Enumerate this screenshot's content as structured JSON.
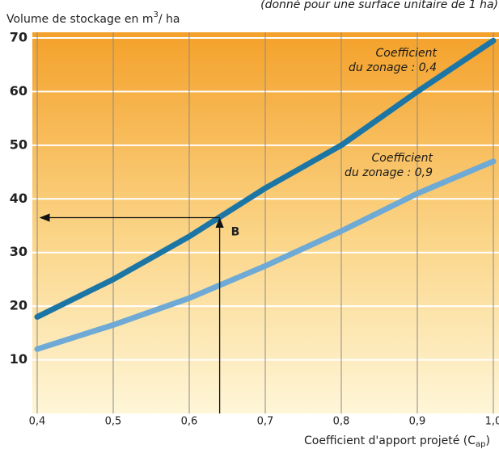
{
  "chart_data": {
    "type": "line",
    "subtitle": "(donné pour une surface unitaire de 1 ha)",
    "y_label": {
      "main": "Volume de stockage en m",
      "sup": "3",
      "rest": "/ ha"
    },
    "x_label": {
      "main": "Coefficient d'apport projeté (C",
      "sub": "ap",
      "rest": ")"
    },
    "x": [
      0.4,
      0.5,
      0.6,
      0.7,
      0.8,
      0.9,
      1.0
    ],
    "series": [
      {
        "color": "#1b76a6",
        "values": [
          18,
          25,
          33,
          42,
          50,
          60,
          69.5
        ]
      },
      {
        "color": "#6eaad5",
        "values": [
          12,
          16.5,
          21.5,
          27.5,
          34,
          41,
          47
        ]
      }
    ],
    "annotations": [
      {
        "lines": [
          "Coefficient",
          "du zonage : 0,4"
        ]
      },
      {
        "lines": [
          "Coefficient",
          "du zonage : 0,9"
        ]
      }
    ],
    "reading_example": {
      "x": 0.64,
      "y": 36.5,
      "label": "B"
    },
    "xlim": [
      0.4,
      1.0
    ],
    "ylim": [
      0,
      70
    ],
    "xticks": [
      {
        "value": 0.4,
        "label": "0,4"
      },
      {
        "value": 0.5,
        "label": "0,5"
      },
      {
        "value": 0.6,
        "label": "0,6"
      },
      {
        "value": 0.7,
        "label": "0,7"
      },
      {
        "value": 0.8,
        "label": "0,8"
      },
      {
        "value": 0.9,
        "label": "0,9"
      },
      {
        "value": 1.0,
        "label": "1,0"
      }
    ],
    "yticks": [
      10,
      20,
      30,
      40,
      50,
      60,
      70
    ],
    "grid": true
  }
}
